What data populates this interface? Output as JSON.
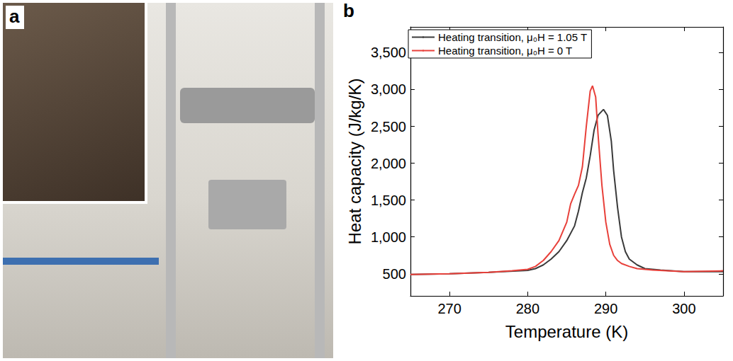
{
  "panel_labels": [
    "a",
    "b"
  ],
  "chart_data": {
    "type": "line",
    "x_label": "Temperature (K)",
    "y_label": "Heat capacity (J/kg/K)",
    "xlim": [
      265,
      305
    ],
    "xticks": [
      270,
      280,
      290,
      300
    ],
    "ylim": [
      200,
      3850
    ],
    "yticks": [
      500,
      1000,
      1500,
      2000,
      2500,
      3000,
      3500
    ],
    "grid": false,
    "legend": "top-left",
    "series": [
      {
        "name": "Heating transition, μ₀H = 1.05 T",
        "color": "#3a3a3a",
        "x": [
          265,
          270,
          275,
          280,
          281,
          282,
          283,
          284,
          285,
          286,
          286.5,
          287,
          287.5,
          288,
          288.5,
          289,
          289.7,
          290.2,
          290.7,
          291,
          291.5,
          292,
          292.5,
          293,
          294,
          295,
          297,
          300,
          305
        ],
        "values": [
          490,
          500,
          520,
          545,
          570,
          620,
          700,
          800,
          950,
          1150,
          1350,
          1600,
          1800,
          2100,
          2450,
          2650,
          2730,
          2650,
          2300,
          1900,
          1400,
          1000,
          800,
          700,
          620,
          570,
          550,
          530,
          530
        ]
      },
      {
        "name": "Heating transition, μ₀H = 0 T",
        "color": "#e8403a",
        "x": [
          265,
          270,
          275,
          278,
          280,
          281,
          282,
          283,
          284,
          285,
          285.5,
          286,
          286.5,
          287,
          287.5,
          288,
          288.3,
          288.7,
          289,
          289.5,
          290,
          290.5,
          291,
          291.5,
          292,
          293,
          294,
          296,
          300,
          305
        ],
        "values": [
          490,
          500,
          520,
          540,
          560,
          600,
          680,
          800,
          950,
          1200,
          1450,
          1580,
          1700,
          1950,
          2500,
          2980,
          3050,
          2900,
          2400,
          1700,
          1200,
          900,
          750,
          680,
          640,
          600,
          570,
          550,
          530,
          540
        ]
      }
    ]
  }
}
